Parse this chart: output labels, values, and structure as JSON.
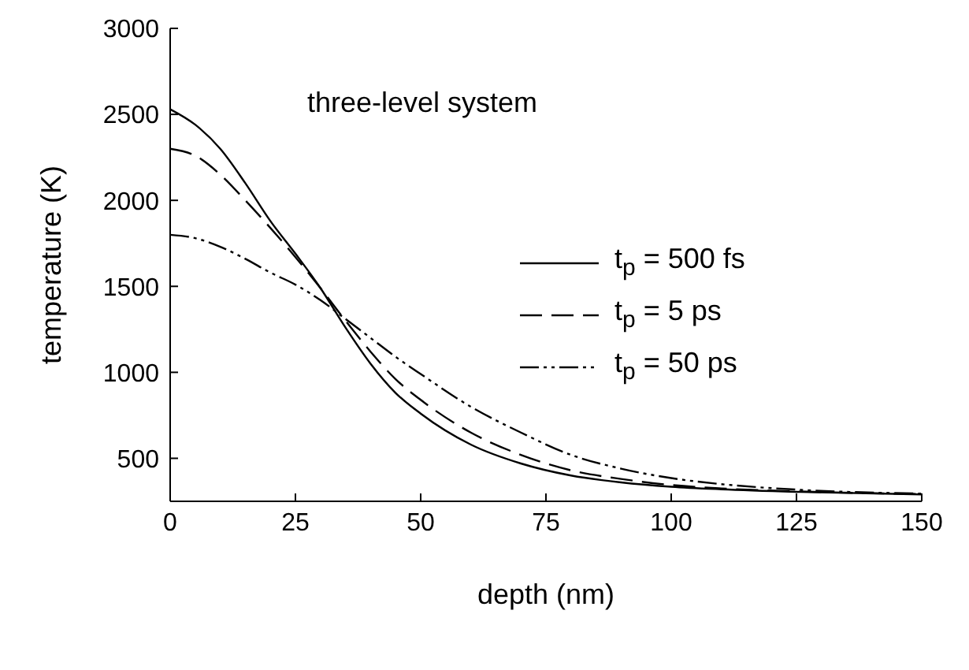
{
  "chart_data": {
    "type": "line",
    "xlabel": "depth (nm)",
    "ylabel": "temperature (K)",
    "annotations": [
      "three-level system"
    ],
    "x": [
      0,
      5,
      10,
      15,
      20,
      25,
      30,
      35,
      40,
      45,
      50,
      60,
      70,
      80,
      90,
      100,
      110,
      125,
      150
    ],
    "series": [
      {
        "name": "t$_{p}$ = 500 fs",
        "color": "#000000",
        "line_style": "solid",
        "values": [
          2530,
          2440,
          2300,
          2100,
          1880,
          1690,
          1490,
          1260,
          1050,
          880,
          760,
          580,
          470,
          400,
          360,
          335,
          320,
          305,
          290
        ]
      },
      {
        "name": "t$_{p}$ = 5 ps",
        "color": "#000000",
        "line_style": "dashed",
        "values": [
          2300,
          2260,
          2150,
          2000,
          1840,
          1670,
          1490,
          1300,
          1120,
          960,
          840,
          650,
          520,
          430,
          380,
          345,
          325,
          308,
          292
        ]
      },
      {
        "name": "t$_{p}$ = 50 ps",
        "color": "#000000",
        "line_style": "dotted",
        "values": [
          1800,
          1780,
          1730,
          1660,
          1580,
          1510,
          1420,
          1310,
          1200,
          1090,
          990,
          800,
          650,
          520,
          440,
          385,
          350,
          318,
          295
        ]
      }
    ],
    "xlim": [
      0,
      150
    ],
    "xticks": [
      0,
      25,
      50,
      75,
      100,
      125,
      150
    ],
    "ylim": [
      250,
      3000
    ],
    "yticks": [
      500,
      1000,
      1500,
      2000,
      2500,
      3000
    ],
    "grid": false,
    "legend": "right",
    "marker": "none"
  }
}
